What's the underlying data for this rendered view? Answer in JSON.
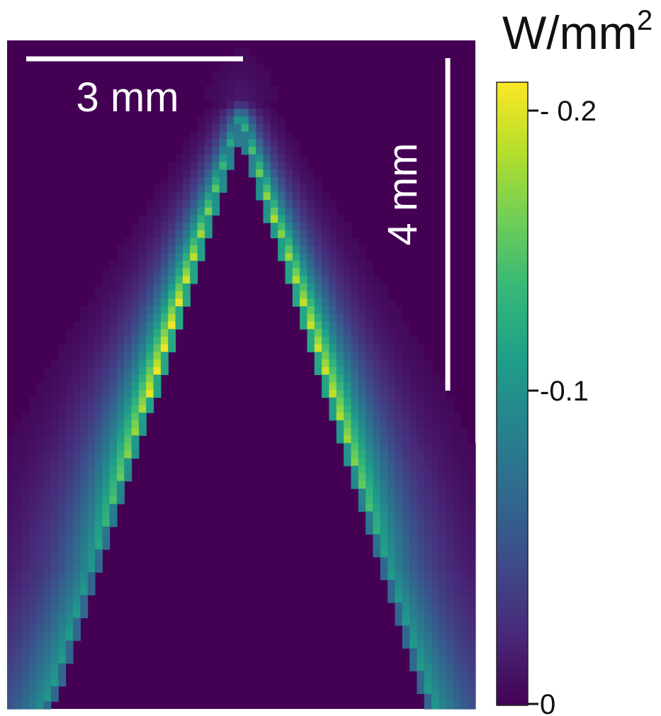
{
  "chart_data": {
    "type": "heatmap",
    "title": "",
    "colorbar": {
      "unit_base": "W/mm",
      "unit_exponent": "2",
      "ticks": [
        {
          "value": 0,
          "label": "0"
        },
        {
          "value": 0.1,
          "label": "-0.1"
        },
        {
          "value": 0.2,
          "label": "- 0.2"
        }
      ],
      "range": [
        0,
        0.21
      ],
      "colormap": "viridis",
      "colors": [
        "#440154",
        "#482878",
        "#3e4989",
        "#31688e",
        "#26828e",
        "#1f9e89",
        "#35b779",
        "#6ece58",
        "#b5de2b",
        "#fde725"
      ]
    },
    "scale_bars": [
      {
        "label": "3 mm",
        "orientation": "horizontal"
      },
      {
        "label": "4 mm",
        "orientation": "vertical"
      }
    ],
    "heatmap": {
      "description_kind": "inverted-V high-intensity band",
      "peak_value": 0.21,
      "background_value": 0.0
    }
  }
}
